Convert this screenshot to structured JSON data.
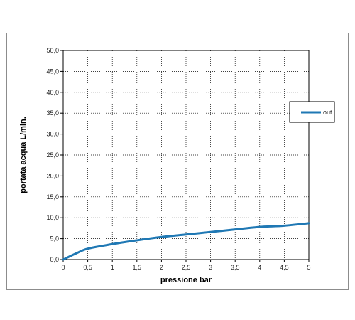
{
  "chart_data": {
    "type": "line",
    "title": "",
    "xlabel": "pressione bar",
    "ylabel": "portata acqua L/min.",
    "xlim": [
      0,
      5
    ],
    "ylim": [
      0,
      50
    ],
    "x_ticks": [
      "0",
      "0,5",
      "1",
      "1,5",
      "2",
      "2,5",
      "3",
      "3,5",
      "4",
      "4,5",
      "5"
    ],
    "y_ticks": [
      "0,0",
      "5,0",
      "10,0",
      "15,0",
      "20,0",
      "25,0",
      "30,0",
      "35,0",
      "40,0",
      "45,0",
      "50,0"
    ],
    "grid": true,
    "legend_position": "right",
    "series": [
      {
        "name": "out",
        "color": "#1f78b4",
        "x": [
          0,
          0.25,
          0.5,
          1,
          1.5,
          2,
          2.5,
          3,
          3.5,
          4,
          4.5,
          5
        ],
        "y": [
          0,
          1.4,
          2.6,
          3.7,
          4.6,
          5.4,
          6.0,
          6.6,
          7.2,
          7.8,
          8.1,
          8.7
        ]
      }
    ]
  }
}
